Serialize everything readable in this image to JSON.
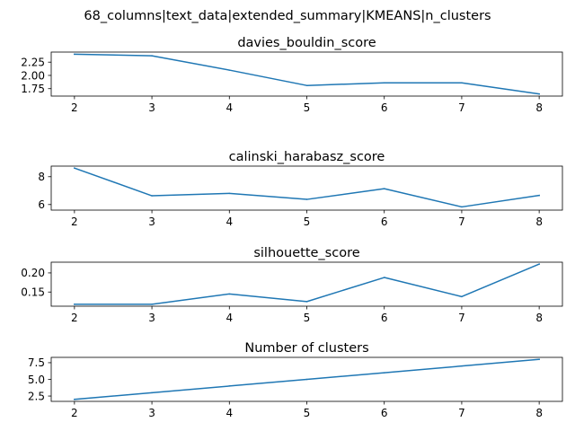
{
  "suptitle": "68_columns|text_data|extended_summary|KMEANS|n_clusters",
  "colors": {
    "line": "#1f77b4",
    "axes": "#000000",
    "background": "#ffffff"
  },
  "chart_data": [
    {
      "type": "line",
      "title": "davies_bouldin_score",
      "xlabel": "",
      "ylabel": "",
      "x": [
        2,
        3,
        4,
        5,
        6,
        7,
        8
      ],
      "series": [
        {
          "values": [
            2.4,
            2.37,
            2.1,
            1.81,
            1.86,
            1.86,
            1.65
          ]
        }
      ],
      "xlim": [
        1.7,
        8.3
      ],
      "ylim": [
        1.61,
        2.44
      ],
      "xticks": [
        "2",
        "3",
        "4",
        "5",
        "6",
        "7",
        "8"
      ],
      "yticks": [
        {
          "value": 1.75,
          "label": "1.75"
        },
        {
          "value": 2.0,
          "label": "2.00"
        },
        {
          "value": 2.25,
          "label": "2.25"
        }
      ],
      "grid": false
    },
    {
      "type": "line",
      "title": "calinski_harabasz_score",
      "xlabel": "",
      "ylabel": "",
      "x": [
        2,
        3,
        4,
        5,
        6,
        7,
        8
      ],
      "series": [
        {
          "values": [
            8.62,
            6.63,
            6.8,
            6.37,
            7.14,
            5.83,
            6.66
          ]
        }
      ],
      "xlim": [
        1.7,
        8.3
      ],
      "ylim": [
        5.6,
        8.76
      ],
      "xticks": [
        "2",
        "3",
        "4",
        "5",
        "6",
        "7",
        "8"
      ],
      "yticks": [
        {
          "value": 6,
          "label": "6"
        },
        {
          "value": 8,
          "label": "8"
        }
      ],
      "grid": false
    },
    {
      "type": "line",
      "title": "silhouette_score",
      "xlabel": "",
      "ylabel": "",
      "x": [
        2,
        3,
        4,
        5,
        6,
        7,
        8
      ],
      "series": [
        {
          "values": [
            0.118,
            0.118,
            0.145,
            0.125,
            0.188,
            0.138,
            0.223
          ]
        }
      ],
      "xlim": [
        1.7,
        8.3
      ],
      "ylim": [
        0.113,
        0.228
      ],
      "xticks": [
        "2",
        "3",
        "4",
        "5",
        "6",
        "7",
        "8"
      ],
      "yticks": [
        {
          "value": 0.15,
          "label": "0.15"
        },
        {
          "value": 0.2,
          "label": "0.20"
        }
      ],
      "grid": false
    },
    {
      "type": "line",
      "title": "Number of clusters",
      "xlabel": "",
      "ylabel": "",
      "x": [
        2,
        3,
        4,
        5,
        6,
        7,
        8
      ],
      "series": [
        {
          "values": [
            2,
            3,
            4,
            5,
            6,
            7,
            8
          ]
        }
      ],
      "xlim": [
        1.7,
        8.3
      ],
      "ylim": [
        1.7,
        8.3
      ],
      "xticks": [
        "2",
        "3",
        "4",
        "5",
        "6",
        "7",
        "8"
      ],
      "yticks": [
        {
          "value": 2.5,
          "label": "2.5"
        },
        {
          "value": 5.0,
          "label": "5.0"
        },
        {
          "value": 7.5,
          "label": "7.5"
        }
      ],
      "grid": false
    }
  ]
}
